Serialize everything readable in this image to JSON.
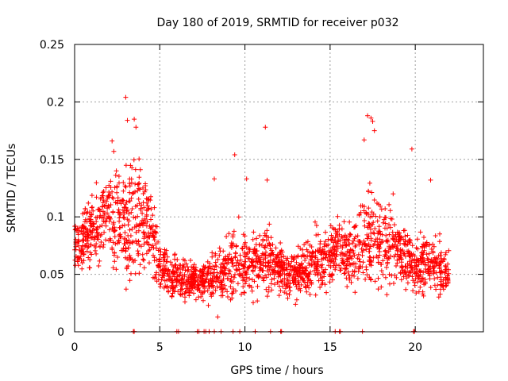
{
  "chart_data": {
    "type": "scatter",
    "title": "Day 180 of 2019, SRMTID for receiver p032",
    "xlabel": "GPS time / hours",
    "ylabel": "SRMTID / TECUs",
    "xlim": [
      0,
      24
    ],
    "ylim": [
      0,
      0.25
    ],
    "xticks": [
      0,
      5,
      10,
      15,
      20
    ],
    "xtick_labels": [
      "0",
      "5",
      "10",
      "15",
      "20"
    ],
    "yticks": [
      0,
      0.05,
      0.1,
      0.15,
      0.2,
      0.25
    ],
    "ytick_labels": [
      "0",
      "0.05",
      "0.1",
      "0.15",
      "0.2",
      "0.25"
    ],
    "grid": true,
    "marker": "+",
    "series_color": "#ff0000",
    "profile": {
      "hours": [
        0,
        0.5,
        1,
        1.5,
        2,
        2.5,
        3,
        3.5,
        4,
        4.5,
        5,
        5.5,
        6,
        6.5,
        7,
        7.5,
        8,
        8.5,
        9,
        9.5,
        10,
        10.5,
        11,
        11.5,
        12,
        12.5,
        13,
        13.5,
        14,
        14.5,
        15,
        15.5,
        16,
        16.5,
        17,
        17.5,
        18,
        18.5,
        19,
        19.5,
        20,
        20.5,
        21,
        21.5,
        22
      ],
      "center": [
        0.08,
        0.08,
        0.09,
        0.09,
        0.1,
        0.1,
        0.09,
        0.1,
        0.1,
        0.09,
        0.06,
        0.05,
        0.05,
        0.045,
        0.045,
        0.045,
        0.05,
        0.05,
        0.055,
        0.06,
        0.06,
        0.06,
        0.06,
        0.06,
        0.055,
        0.05,
        0.05,
        0.055,
        0.06,
        0.065,
        0.065,
        0.07,
        0.065,
        0.065,
        0.075,
        0.08,
        0.08,
        0.075,
        0.07,
        0.065,
        0.06,
        0.06,
        0.06,
        0.055,
        0.05
      ],
      "spread": [
        0.02,
        0.02,
        0.025,
        0.025,
        0.03,
        0.035,
        0.035,
        0.04,
        0.035,
        0.03,
        0.02,
        0.015,
        0.015,
        0.012,
        0.012,
        0.012,
        0.015,
        0.015,
        0.02,
        0.025,
        0.02,
        0.02,
        0.02,
        0.02,
        0.018,
        0.015,
        0.015,
        0.018,
        0.02,
        0.02,
        0.02,
        0.02,
        0.02,
        0.025,
        0.035,
        0.04,
        0.03,
        0.025,
        0.02,
        0.02,
        0.02,
        0.025,
        0.02,
        0.015,
        0.012
      ],
      "point_count": 2200,
      "x_range": [
        0,
        22
      ]
    },
    "outliers": [
      {
        "x": 3.0,
        "y": 0.204
      },
      {
        "x": 3.1,
        "y": 0.184
      },
      {
        "x": 3.5,
        "y": 0.185
      },
      {
        "x": 3.6,
        "y": 0.178
      },
      {
        "x": 2.2,
        "y": 0.166
      },
      {
        "x": 2.3,
        "y": 0.157
      },
      {
        "x": 9.4,
        "y": 0.154
      },
      {
        "x": 11.2,
        "y": 0.178
      },
      {
        "x": 11.3,
        "y": 0.132
      },
      {
        "x": 17.0,
        "y": 0.167
      },
      {
        "x": 17.2,
        "y": 0.188
      },
      {
        "x": 17.4,
        "y": 0.186
      },
      {
        "x": 17.5,
        "y": 0.183
      },
      {
        "x": 17.6,
        "y": 0.175
      },
      {
        "x": 19.8,
        "y": 0.159
      },
      {
        "x": 8.2,
        "y": 0.133
      },
      {
        "x": 8.4,
        "y": 0.013
      },
      {
        "x": 18.7,
        "y": 0.12
      },
      {
        "x": 20.9,
        "y": 0.132
      },
      {
        "x": 10.1,
        "y": 0.133
      }
    ],
    "zero_markers": [
      3.45,
      3.5,
      6.0,
      6.1,
      7.2,
      7.3,
      7.6,
      7.7,
      7.9,
      8.2,
      8.6,
      9.3,
      9.7,
      10.6,
      11.5,
      12.1,
      12.15,
      15.3,
      15.55,
      15.6,
      16.9,
      19.9,
      19.95
    ]
  }
}
